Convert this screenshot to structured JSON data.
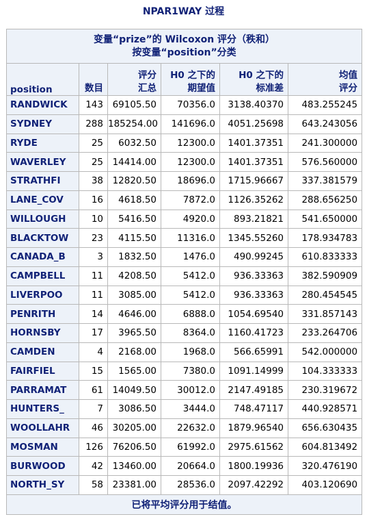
{
  "title": "NPAR1WAY 过程",
  "caption": {
    "line1": "变量“prize”的 Wilcoxon 评分（秩和）",
    "line2": "按变量“position”分类"
  },
  "headers": {
    "position": "position",
    "count": "数目",
    "sum_1": "评分",
    "sum_2": "汇总",
    "exp_1": "H0 之下的",
    "exp_2": "期望值",
    "std_1": "H0 之下的",
    "std_2": "标准差",
    "mean_1": "均值",
    "mean_2": "评分"
  },
  "rows": [
    {
      "position": "RANDWICK",
      "n": "143",
      "sum": "69105.50",
      "expected": "70356.0",
      "std": "3138.40370",
      "mean": "483.255245"
    },
    {
      "position": "SYDNEY",
      "n": "288",
      "sum": "185254.00",
      "expected": "141696.0",
      "std": "4051.25698",
      "mean": "643.243056"
    },
    {
      "position": "RYDE",
      "n": "25",
      "sum": "6032.50",
      "expected": "12300.0",
      "std": "1401.37351",
      "mean": "241.300000"
    },
    {
      "position": "WAVERLEY",
      "n": "25",
      "sum": "14414.00",
      "expected": "12300.0",
      "std": "1401.37351",
      "mean": "576.560000"
    },
    {
      "position": "STRATHFI",
      "n": "38",
      "sum": "12820.50",
      "expected": "18696.0",
      "std": "1715.96667",
      "mean": "337.381579"
    },
    {
      "position": "LANE_COV",
      "n": "16",
      "sum": "4618.50",
      "expected": "7872.0",
      "std": "1126.35262",
      "mean": "288.656250"
    },
    {
      "position": "WILLOUGH",
      "n": "10",
      "sum": "5416.50",
      "expected": "4920.0",
      "std": "893.21821",
      "mean": "541.650000"
    },
    {
      "position": "BLACKTOW",
      "n": "23",
      "sum": "4115.50",
      "expected": "11316.0",
      "std": "1345.55260",
      "mean": "178.934783"
    },
    {
      "position": "CANADA_B",
      "n": "3",
      "sum": "1832.50",
      "expected": "1476.0",
      "std": "490.99245",
      "mean": "610.833333"
    },
    {
      "position": "CAMPBELL",
      "n": "11",
      "sum": "4208.50",
      "expected": "5412.0",
      "std": "936.33363",
      "mean": "382.590909"
    },
    {
      "position": "LIVERPOO",
      "n": "11",
      "sum": "3085.00",
      "expected": "5412.0",
      "std": "936.33363",
      "mean": "280.454545"
    },
    {
      "position": "PENRITH",
      "n": "14",
      "sum": "4646.00",
      "expected": "6888.0",
      "std": "1054.69540",
      "mean": "331.857143"
    },
    {
      "position": "HORNSBY",
      "n": "17",
      "sum": "3965.50",
      "expected": "8364.0",
      "std": "1160.41723",
      "mean": "233.264706"
    },
    {
      "position": "CAMDEN",
      "n": "4",
      "sum": "2168.00",
      "expected": "1968.0",
      "std": "566.65991",
      "mean": "542.000000"
    },
    {
      "position": "FAIRFIEL",
      "n": "15",
      "sum": "1565.00",
      "expected": "7380.0",
      "std": "1091.14999",
      "mean": "104.333333"
    },
    {
      "position": "PARRAMAT",
      "n": "61",
      "sum": "14049.50",
      "expected": "30012.0",
      "std": "2147.49185",
      "mean": "230.319672"
    },
    {
      "position": "HUNTERS_",
      "n": "7",
      "sum": "3086.50",
      "expected": "3444.0",
      "std": "748.47117",
      "mean": "440.928571"
    },
    {
      "position": "WOOLLAHR",
      "n": "46",
      "sum": "30205.00",
      "expected": "22632.0",
      "std": "1879.96540",
      "mean": "656.630435"
    },
    {
      "position": "MOSMAN",
      "n": "126",
      "sum": "76206.50",
      "expected": "61992.0",
      "std": "2975.61562",
      "mean": "604.813492"
    },
    {
      "position": "BURWOOD",
      "n": "42",
      "sum": "13460.00",
      "expected": "20664.0",
      "std": "1800.19936",
      "mean": "320.476190"
    },
    {
      "position": "NORTH_SY",
      "n": "58",
      "sum": "23381.00",
      "expected": "28536.0",
      "std": "2097.42292",
      "mean": "403.120690"
    }
  ],
  "footnote": "已将平均评分用于结值。"
}
